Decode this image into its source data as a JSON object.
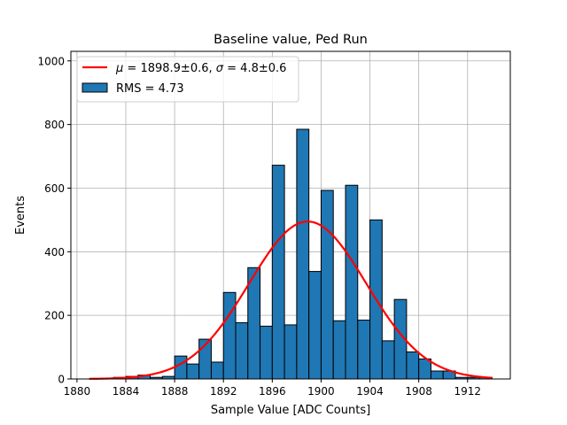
{
  "chart_data": {
    "type": "bar",
    "title": "Baseline value, Ped Run",
    "xlabel": "Sample Value [ADC Counts]",
    "ylabel": "Events",
    "xlim": [
      1879.5,
      1915.5
    ],
    "ylim": [
      0,
      1030
    ],
    "xticks": [
      1880,
      1884,
      1888,
      1892,
      1896,
      1900,
      1904,
      1908,
      1912
    ],
    "yticks": [
      0,
      200,
      400,
      600,
      800,
      1000
    ],
    "grid": true,
    "legend_position": "top-left",
    "bin_width": 1,
    "bin_left_edges": [
      1883,
      1884,
      1885,
      1886,
      1887,
      1888,
      1889,
      1890,
      1891,
      1892,
      1893,
      1894,
      1895,
      1896,
      1897,
      1898,
      1899,
      1900,
      1901,
      1902,
      1903,
      1904,
      1905,
      1906,
      1907,
      1908,
      1909,
      1910,
      1911,
      1912,
      1913
    ],
    "counts": [
      5,
      8,
      12,
      5,
      8,
      72,
      47,
      125,
      53,
      272,
      177,
      350,
      166,
      672,
      170,
      785,
      338,
      593,
      183,
      609,
      185,
      500,
      120,
      250,
      85,
      63,
      25,
      25,
      5,
      5,
      5
    ],
    "histogram_label": "RMS = 4.73",
    "histogram_color": "#1f77b4",
    "fit": {
      "label_mu_symbol": "μ",
      "label_sigma_symbol": "σ",
      "label_mu_text": " = 1898.9±0.6, ",
      "label_sigma_text": " = 4.8±0.6",
      "mu": 1898.9,
      "sigma": 4.8,
      "amplitude": 495,
      "x_range": [
        1881,
        1914
      ],
      "color": "#ff0000"
    }
  }
}
